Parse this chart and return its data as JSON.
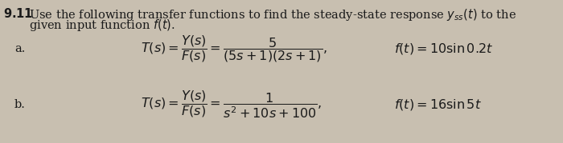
{
  "background_color": "#c8bfb0",
  "title_number": "9.11",
  "title_text": " Use the following transfer functions to find the steady-state response $y_{ss}(t)$ to the",
  "title_text2": "given input function $f(t)$.",
  "part_a_label": "a.",
  "part_b_label": "b.",
  "title_fontsize": 10.5,
  "label_fontsize": 10.5,
  "eq_fontsize": 11.5,
  "ft_fontsize": 11.5,
  "text_color": "#1a1a1a"
}
